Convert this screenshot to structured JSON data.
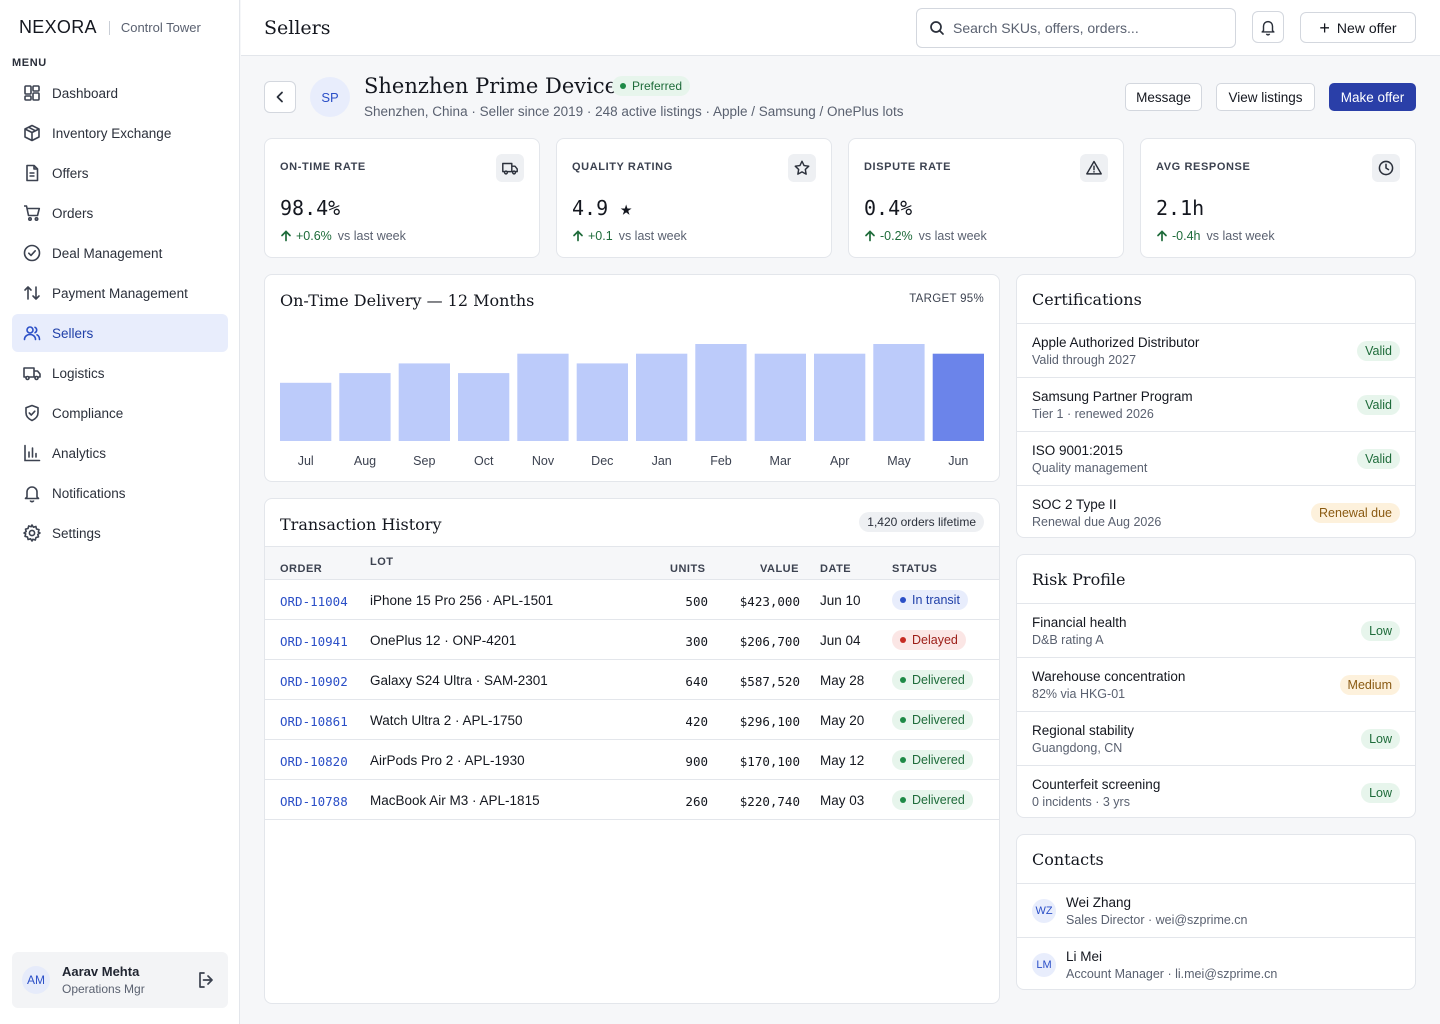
{
  "brand": {
    "name": "NEXORA",
    "product": "Control Tower"
  },
  "sidebar": {
    "menu_label": "MENU",
    "items": [
      {
        "label": "Dashboard",
        "icon": "dashboard-icon"
      },
      {
        "label": "Inventory Exchange",
        "icon": "box-icon"
      },
      {
        "label": "Offers",
        "icon": "document-icon"
      },
      {
        "label": "Orders",
        "icon": "cart-icon"
      },
      {
        "label": "Deal Management",
        "icon": "check-circle-icon"
      },
      {
        "label": "Payment Management",
        "icon": "arrows-icon"
      },
      {
        "label": "Sellers",
        "icon": "users-icon",
        "active": true
      },
      {
        "label": "Logistics",
        "icon": "truck-icon"
      },
      {
        "label": "Compliance",
        "icon": "shield-icon"
      },
      {
        "label": "Analytics",
        "icon": "bar-chart-icon"
      },
      {
        "label": "Notifications",
        "icon": "bell-icon"
      },
      {
        "label": "Settings",
        "icon": "gear-icon"
      }
    ],
    "user": {
      "initials": "AM",
      "name": "Aarav Mehta",
      "role": "Operations Mgr"
    }
  },
  "topbar": {
    "title": "Sellers",
    "search_placeholder": "Search SKUs, offers, orders...",
    "new_offer_label": "New offer"
  },
  "seller": {
    "initials": "SP",
    "name": "Shenzhen Prime Devices",
    "badge": "Preferred",
    "subtitle": "Shenzhen, China · Seller since 2019 · 248 active listings · Apple / Samsung / OnePlus lots",
    "actions": {
      "message": "Message",
      "view_listings": "View listings",
      "make_offer": "Make offer"
    }
  },
  "kpis": [
    {
      "label": "ON-TIME RATE",
      "value": "98.4%",
      "delta": "+0.6%",
      "suffix": "vs last week",
      "icon": "truck-icon"
    },
    {
      "label": "QUALITY RATING",
      "value": "4.9 ★",
      "delta": "+0.1",
      "suffix": "vs last week",
      "icon": "star-icon"
    },
    {
      "label": "DISPUTE RATE",
      "value": "0.4%",
      "delta": "-0.2%",
      "suffix": "vs last week",
      "icon": "warning-icon"
    },
    {
      "label": "AVG RESPONSE",
      "value": "2.1h",
      "delta": "-0.4h",
      "suffix": "vs last week",
      "icon": "clock-icon"
    }
  ],
  "chart_data": {
    "type": "bar",
    "title": "On-Time Delivery — 12 Months",
    "target_label": "TARGET 95%",
    "categories": [
      "Jul",
      "Aug",
      "Sep",
      "Oct",
      "Nov",
      "Dec",
      "Jan",
      "Feb",
      "Mar",
      "Apr",
      "May",
      "Jun"
    ],
    "values": [
      96.1,
      96.5,
      96.9,
      96.5,
      97.3,
      96.9,
      97.3,
      97.7,
      97.3,
      97.3,
      97.7,
      97.3
    ],
    "ylim": [
      93.7,
      98.4
    ],
    "highlight_index": 11,
    "colors": {
      "bar": "#bccbfa",
      "highlight": "#6b84ea"
    },
    "grid": false
  },
  "transactions": {
    "title": "Transaction History",
    "count_label": "1,420 orders lifetime",
    "columns": {
      "order": "ORDER",
      "lot": "LOT",
      "units": "UNITS",
      "value": "VALUE",
      "date": "DATE",
      "status": "STATUS"
    },
    "rows": [
      {
        "order": "ORD-11004",
        "lot": "iPhone 15 Pro 256 · APL-1501",
        "units": "500",
        "value": "$423,000",
        "date": "Jun 10",
        "status": "In transit",
        "status_kind": "blue"
      },
      {
        "order": "ORD-10941",
        "lot": "OnePlus 12 · ONP-4201",
        "units": "300",
        "value": "$206,700",
        "date": "Jun 04",
        "status": "Delayed",
        "status_kind": "red"
      },
      {
        "order": "ORD-10902",
        "lot": "Galaxy S24 Ultra · SAM-2301",
        "units": "640",
        "value": "$587,520",
        "date": "May 28",
        "status": "Delivered",
        "status_kind": "green"
      },
      {
        "order": "ORD-10861",
        "lot": "Watch Ultra 2 · APL-1750",
        "units": "420",
        "value": "$296,100",
        "date": "May 20",
        "status": "Delivered",
        "status_kind": "green"
      },
      {
        "order": "ORD-10820",
        "lot": "AirPods Pro 2 · APL-1930",
        "units": "900",
        "value": "$170,100",
        "date": "May 12",
        "status": "Delivered",
        "status_kind": "green"
      },
      {
        "order": "ORD-10788",
        "lot": "MacBook Air M3 · APL-1815",
        "units": "260",
        "value": "$220,740",
        "date": "May 03",
        "status": "Delivered",
        "status_kind": "green"
      }
    ]
  },
  "certifications": {
    "title": "Certifications",
    "items": [
      {
        "title": "Apple Authorized Distributor",
        "sub": "Valid through 2027",
        "badge": "Valid",
        "kind": "green"
      },
      {
        "title": "Samsung Partner Program",
        "sub": "Tier 1 · renewed 2026",
        "badge": "Valid",
        "kind": "green"
      },
      {
        "title": "ISO 9001:2015",
        "sub": "Quality management",
        "badge": "Valid",
        "kind": "green"
      },
      {
        "title": "SOC 2 Type II",
        "sub": "Renewal due Aug 2026",
        "badge": "Renewal due",
        "kind": "amber"
      }
    ]
  },
  "risk": {
    "title": "Risk Profile",
    "items": [
      {
        "title": "Financial health",
        "sub": "D&B rating A",
        "badge": "Low",
        "kind": "green"
      },
      {
        "title": "Warehouse concentration",
        "sub": "82% via HKG-01",
        "badge": "Medium",
        "kind": "amber"
      },
      {
        "title": "Regional stability",
        "sub": "Guangdong, CN",
        "badge": "Low",
        "kind": "green"
      },
      {
        "title": "Counterfeit screening",
        "sub": "0 incidents · 3 yrs",
        "badge": "Low",
        "kind": "green"
      }
    ]
  },
  "contacts": {
    "title": "Contacts",
    "items": [
      {
        "initials": "WZ",
        "name": "Wei Zhang",
        "sub": "Sales Director · wei@szprime.cn"
      },
      {
        "initials": "LM",
        "name": "Li Mei",
        "sub": "Account Manager · li.mei@szprime.cn"
      }
    ]
  },
  "colors": {
    "accent": "#2a3fa8",
    "success": "#1e6b3a",
    "danger": "#b3261e",
    "info": "#2b4fc7"
  }
}
